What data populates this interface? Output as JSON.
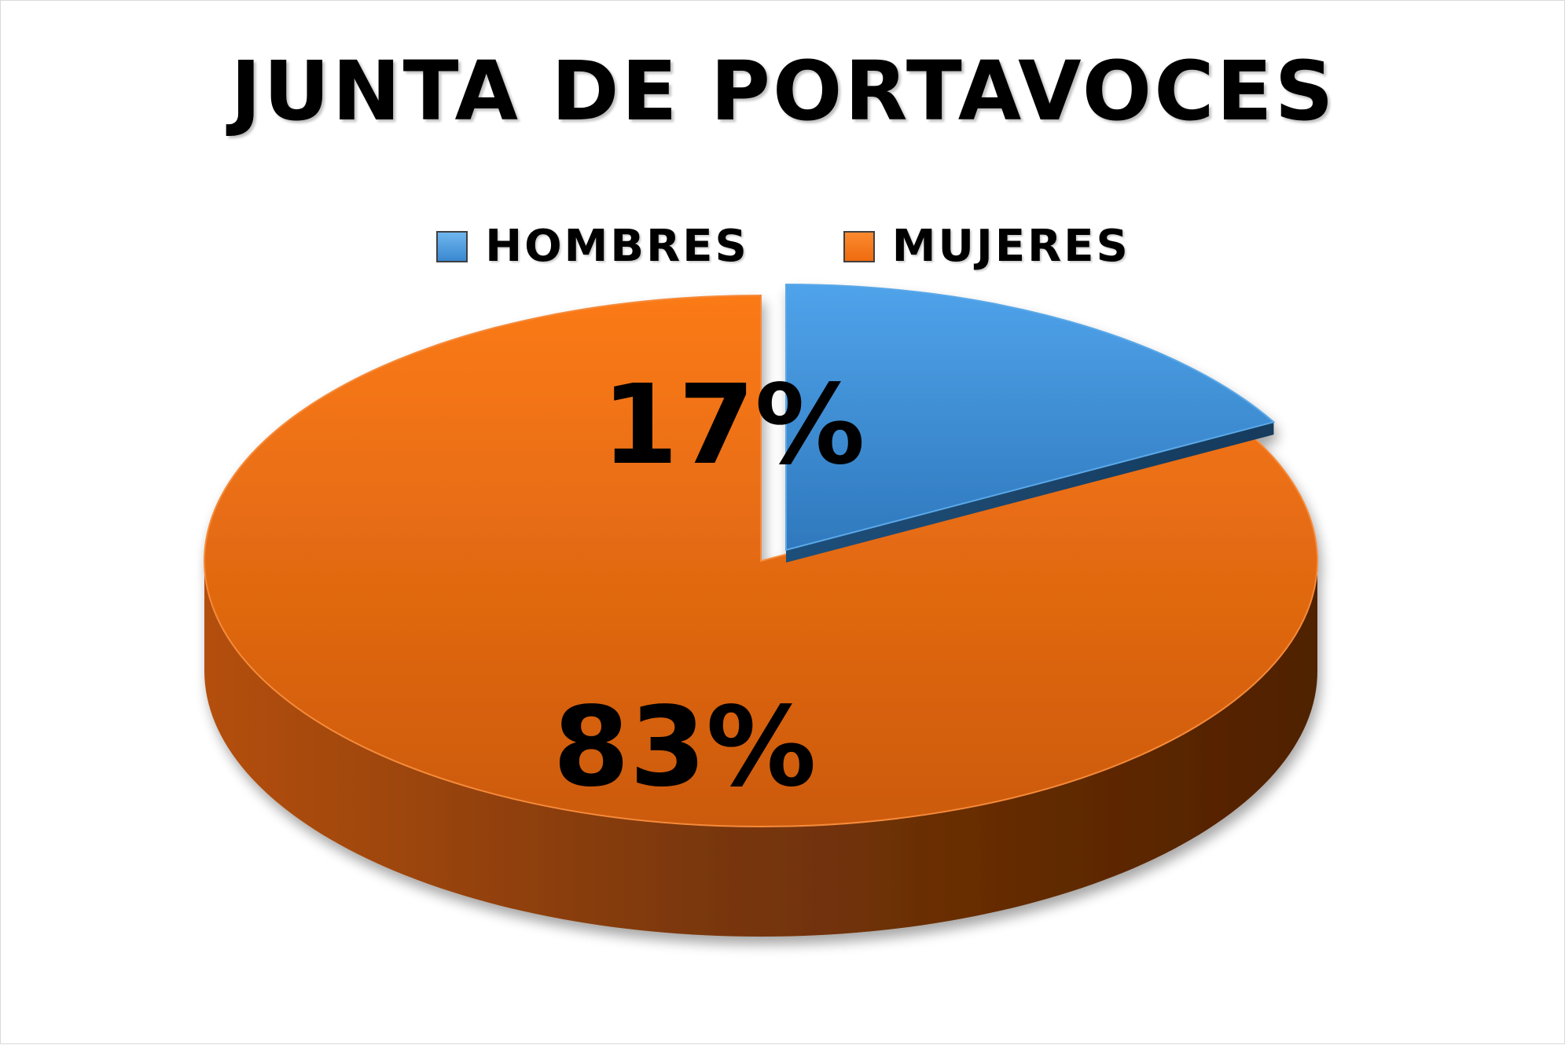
{
  "chart_data": {
    "type": "pie",
    "title": "JUNTA DE PORTAVOCES",
    "categories": [
      "HOMBRES",
      "MUJERES"
    ],
    "values": [
      17,
      83
    ],
    "labels": [
      "17%",
      "83%"
    ],
    "colors": [
      "#3a88d0",
      "#ef6b0f"
    ],
    "legend": "top",
    "style": "3d-exploded"
  },
  "legend": {
    "items": [
      {
        "label": "HOMBRES",
        "color": "#3a88d0"
      },
      {
        "label": "MUJERES",
        "color": "#ef6b0f"
      }
    ]
  }
}
